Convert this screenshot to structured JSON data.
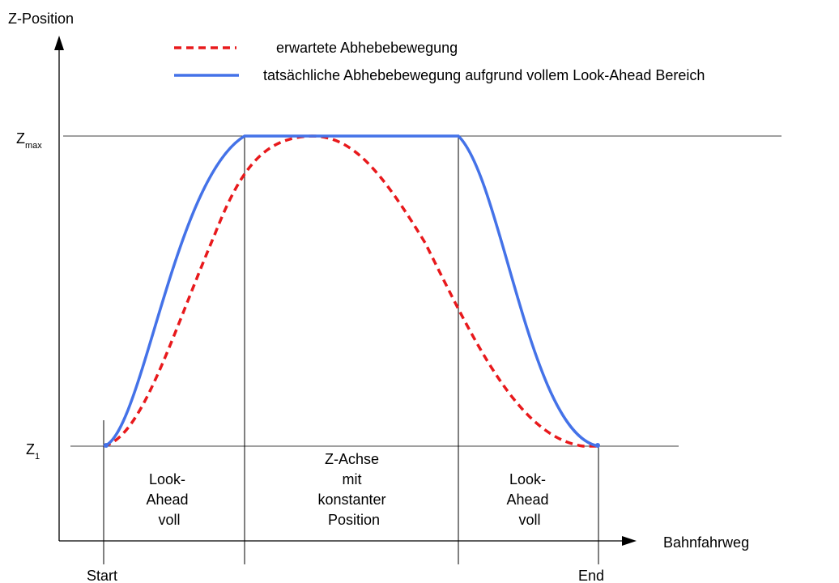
{
  "y_axis_label": "Z-Position",
  "x_axis_label": "Bahnfahrweg",
  "legend": {
    "expected": "erwartete Abhebebewegung",
    "actual": "tatsächliche Abhebebewegung aufgrund vollem Look-Ahead Bereich"
  },
  "z_max": {
    "base": "Z",
    "subscript": "max"
  },
  "z_1": {
    "base": "Z",
    "subscript": "1"
  },
  "start_label": "Start",
  "end_label": "End",
  "zones": [
    {
      "lines": [
        "Look-",
        "Ahead",
        "voll"
      ]
    },
    {
      "lines": [
        "Z-Achse",
        "mit",
        "konstanter",
        "Position"
      ]
    },
    {
      "lines": [
        "Look-",
        "Ahead",
        "voll"
      ]
    }
  ],
  "colors": {
    "expected": "#e8191c",
    "actual": "#4472e8",
    "axis": "#000000"
  }
}
